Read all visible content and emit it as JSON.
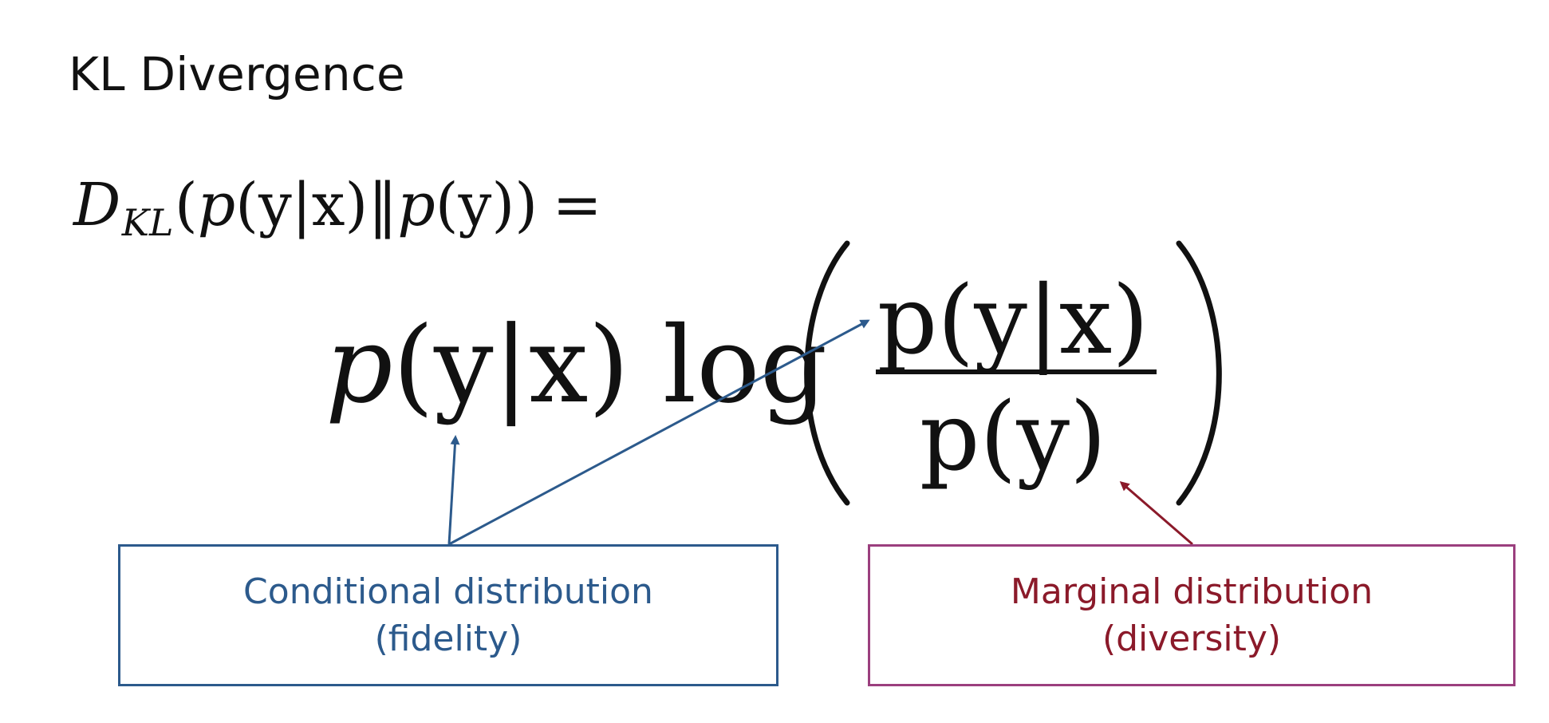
{
  "title": "KL Divergence",
  "formula": {
    "lhs": {
      "D": "D",
      "sub_kl": "KL",
      "open_paren": "(",
      "p1": "p",
      "arg1": "(y|x)",
      "norm": "‖",
      "p2": "p",
      "arg2": "(y))",
      "equals": "="
    },
    "rhs": {
      "p": "p",
      "arg": "(y|x)",
      "log": "log"
    },
    "fraction": {
      "numerator": "p(y|x)",
      "denominator": "p(y)"
    }
  },
  "annotations": {
    "conditional": {
      "line1": "Conditional distribution",
      "line2": "(fidelity)",
      "color": "#2c5a8c"
    },
    "marginal": {
      "line1": "Marginal distribution",
      "line2": "(diversity)",
      "border_color": "#9b3f7e",
      "text_color": "#8b1a2a",
      "arrow_color": "#8b1a2a"
    }
  }
}
